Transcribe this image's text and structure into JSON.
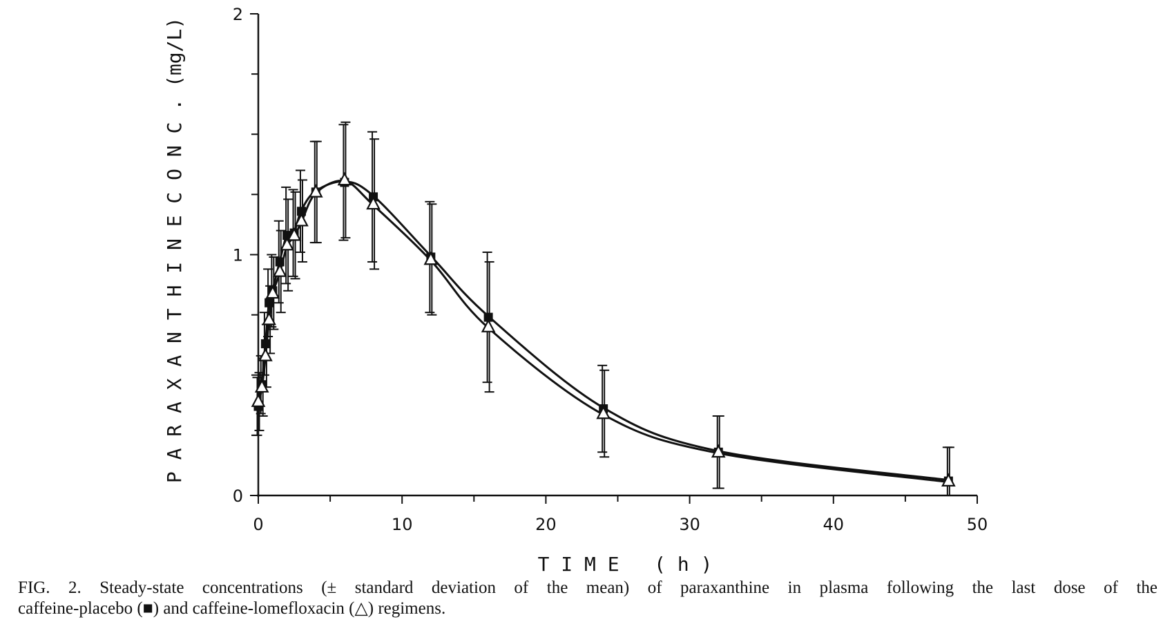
{
  "caption": {
    "line1": "FIG. 2. Steady-state concentrations (± standard deviation of the mean) of paraxanthine in plasma following the last dose of the",
    "line2": "caffeine-placebo (■) and caffeine-lomefloxacin (△) regimens."
  },
  "chart_data": {
    "type": "line",
    "title": "",
    "xlabel": "T I M E   ( h )",
    "ylabel": "P A R A X A N T H I N E   C O N C .   (mg/L)",
    "xlim": [
      0,
      50
    ],
    "ylim": [
      0,
      2
    ],
    "x_ticks": [
      "0",
      "10",
      "20",
      "30",
      "40",
      "50"
    ],
    "y_ticks": [
      "0",
      "1",
      "2"
    ],
    "grid": false,
    "series": [
      {
        "marker": "filled-square",
        "color": "#111111",
        "points": [
          {
            "x": 0,
            "y": 0.37,
            "sd": 0.12
          },
          {
            "x": 0.25,
            "y": 0.46,
            "sd": 0.12
          },
          {
            "x": 0.5,
            "y": 0.63,
            "sd": 0.13
          },
          {
            "x": 0.75,
            "y": 0.8,
            "sd": 0.14
          },
          {
            "x": 1,
            "y": 0.85,
            "sd": 0.15
          },
          {
            "x": 1.5,
            "y": 0.97,
            "sd": 0.17
          },
          {
            "x": 2,
            "y": 1.08,
            "sd": 0.2
          },
          {
            "x": 2.5,
            "y": 1.09,
            "sd": 0.18
          },
          {
            "x": 3,
            "y": 1.18,
            "sd": 0.17
          },
          {
            "x": 4,
            "y": 1.26,
            "sd": 0.21
          },
          {
            "x": 6,
            "y": 1.3,
            "sd": 0.24
          },
          {
            "x": 8,
            "y": 1.24,
            "sd": 0.27
          },
          {
            "x": 12,
            "y": 0.99,
            "sd": 0.23
          },
          {
            "x": 16,
            "y": 0.74,
            "sd": 0.27
          },
          {
            "x": 24,
            "y": 0.36,
            "sd": 0.18
          },
          {
            "x": 32,
            "y": 0.18,
            "sd": 0.15
          },
          {
            "x": 48,
            "y": 0.06,
            "sd": 0.14
          }
        ]
      },
      {
        "marker": "open-triangle",
        "color": "#111111",
        "points": [
          {
            "x": 0,
            "y": 0.39,
            "sd": 0.12
          },
          {
            "x": 0.25,
            "y": 0.45,
            "sd": 0.12
          },
          {
            "x": 0.5,
            "y": 0.58,
            "sd": 0.13
          },
          {
            "x": 0.75,
            "y": 0.73,
            "sd": 0.14
          },
          {
            "x": 1,
            "y": 0.84,
            "sd": 0.15
          },
          {
            "x": 1.5,
            "y": 0.93,
            "sd": 0.17
          },
          {
            "x": 2,
            "y": 1.04,
            "sd": 0.19
          },
          {
            "x": 2.5,
            "y": 1.08,
            "sd": 0.18
          },
          {
            "x": 3,
            "y": 1.14,
            "sd": 0.17
          },
          {
            "x": 4,
            "y": 1.26,
            "sd": 0.21
          },
          {
            "x": 6,
            "y": 1.31,
            "sd": 0.24
          },
          {
            "x": 8,
            "y": 1.21,
            "sd": 0.27
          },
          {
            "x": 12,
            "y": 0.98,
            "sd": 0.23
          },
          {
            "x": 16,
            "y": 0.7,
            "sd": 0.27
          },
          {
            "x": 24,
            "y": 0.34,
            "sd": 0.18
          },
          {
            "x": 32,
            "y": 0.18,
            "sd": 0.15
          },
          {
            "x": 48,
            "y": 0.06,
            "sd": 0.14
          }
        ]
      }
    ]
  }
}
